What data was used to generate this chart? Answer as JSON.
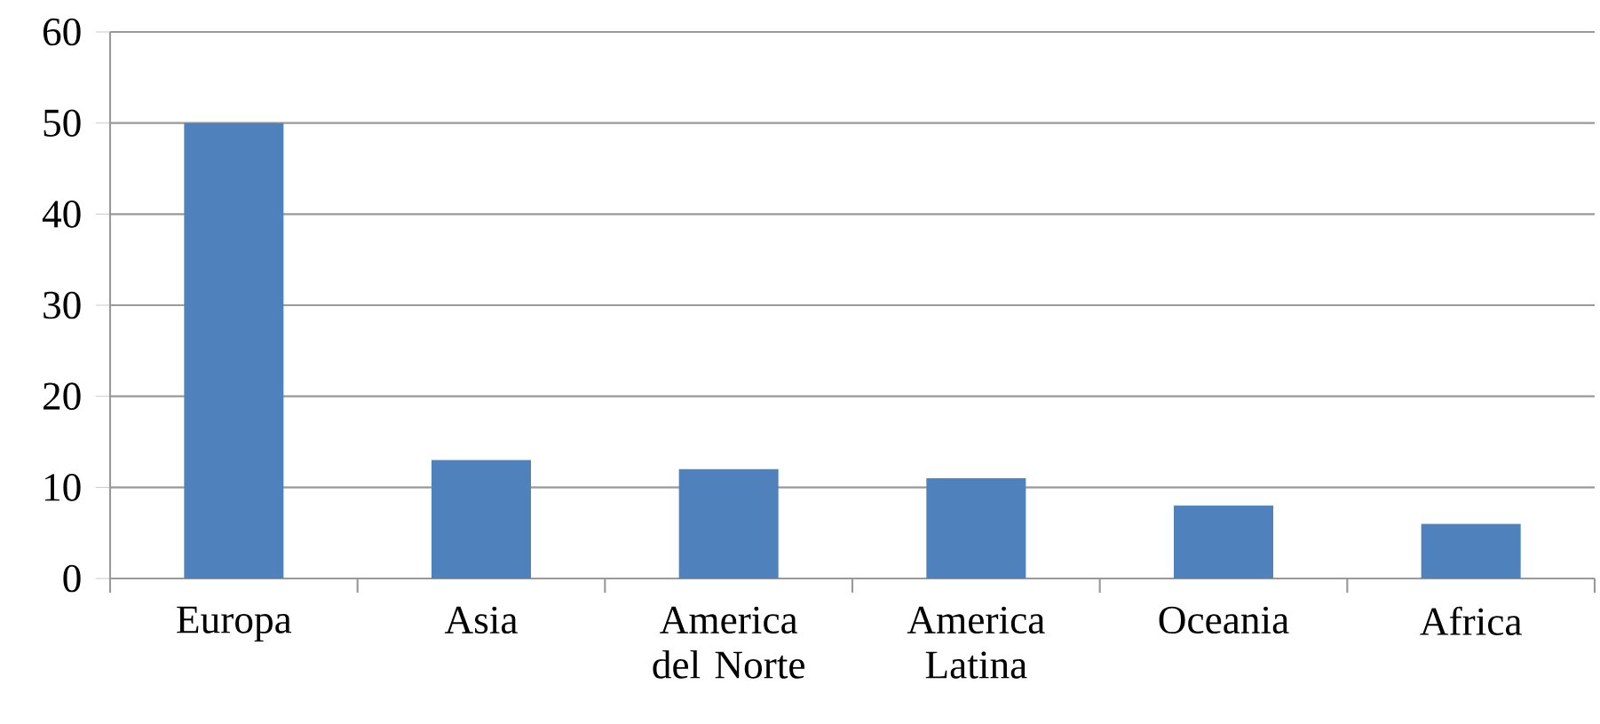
{
  "chart_data": {
    "type": "bar",
    "categories": [
      "Europa",
      "Asia",
      "America del Norte",
      "America Latina",
      "Oceania",
      "Africa"
    ],
    "values": [
      50,
      13,
      12,
      11,
      8,
      6
    ],
    "color": "#4f81bd",
    "ylim": [
      0,
      60
    ],
    "yticks": [
      0,
      10,
      20,
      30,
      40,
      50,
      60
    ],
    "grid": "y"
  }
}
